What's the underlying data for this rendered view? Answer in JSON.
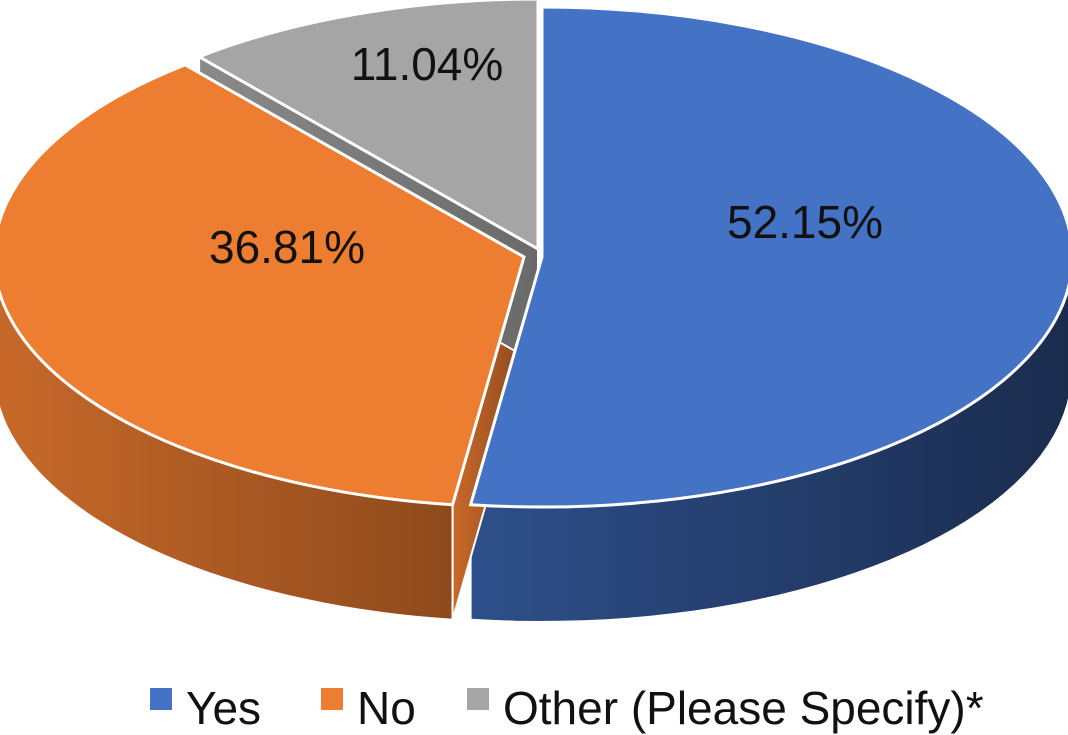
{
  "chart_data": {
    "type": "pie",
    "style": "3d-exploded",
    "title": "",
    "categories": [
      "Yes",
      "No",
      "Other (Please Specify)*"
    ],
    "values": [
      52.15,
      36.81,
      11.04
    ],
    "labels": [
      "52.15%",
      "36.81%",
      "11.04%"
    ],
    "colors": [
      "#4472C4",
      "#ED7D31",
      "#A5A5A5"
    ],
    "legend": {
      "placement": "bottom",
      "items": [
        "Yes",
        "No",
        "Other (Please Specify)*"
      ]
    }
  }
}
